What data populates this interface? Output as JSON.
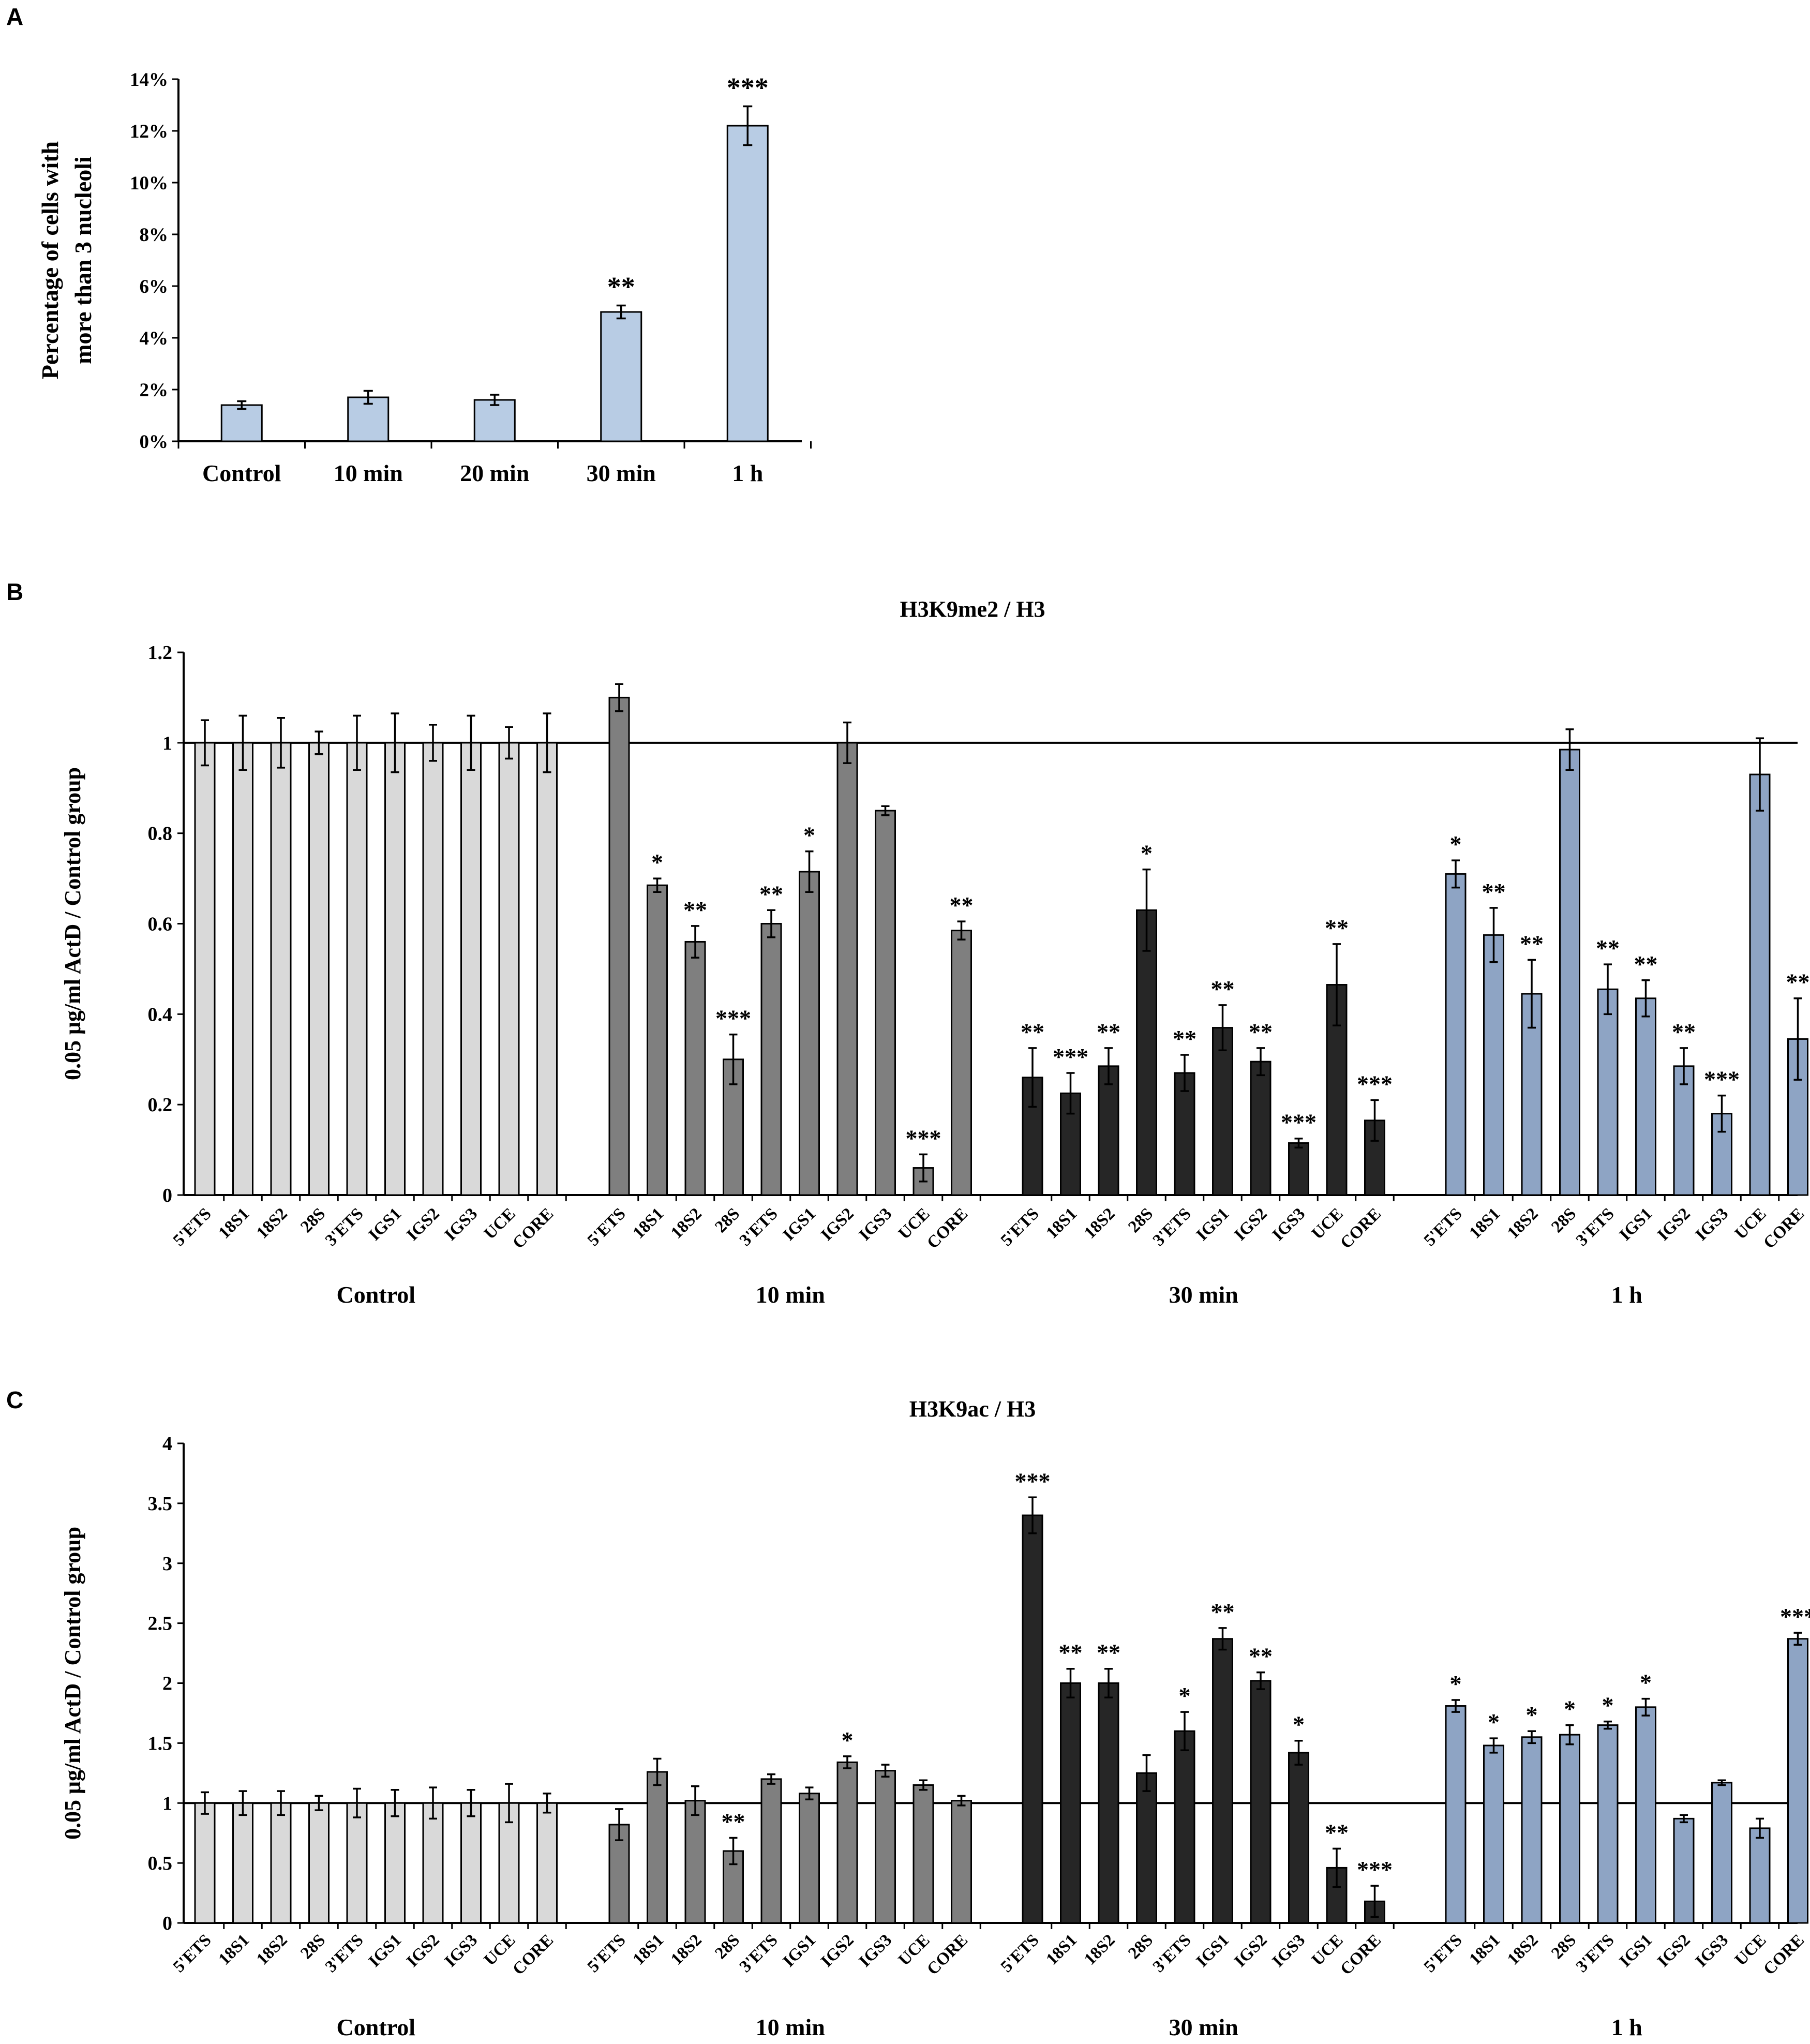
{
  "chart_data": [
    {
      "panel": "A",
      "type": "bar",
      "title": "",
      "ylabel": "Percentage of cells with more than 3 nucleoli",
      "ylabel_lines": [
        "Percentage of cells with",
        "more than 3 nucleoli"
      ],
      "xlabel": "",
      "ylim": [
        0,
        14
      ],
      "yticks": [
        "0%",
        "2%",
        "4%",
        "6%",
        "8%",
        "10%",
        "12%",
        "14%"
      ],
      "categories": [
        "Control",
        "10 min",
        "20 min",
        "30 min",
        "1 h"
      ],
      "values": [
        1.4,
        1.7,
        1.6,
        5.0,
        12.2
      ],
      "errors": [
        0.15,
        0.25,
        0.2,
        0.25,
        0.75
      ],
      "significance": [
        "",
        "",
        "",
        "**",
        "***"
      ],
      "bar_color": "#b8cce4"
    },
    {
      "panel": "B",
      "type": "bar",
      "title": "H3K9me2 / H3",
      "ylabel": "0.05 μg/ml ActD / Control group",
      "ylim": [
        0,
        1.2
      ],
      "yticks": [
        "0",
        "0.2",
        "0.4",
        "0.6",
        "0.8",
        "1",
        "1.2"
      ],
      "reference_line": 1,
      "categories": [
        "5'ETS",
        "18S1",
        "18S2",
        "28S",
        "3'ETS",
        "IGS1",
        "IGS2",
        "IGS3",
        "UCE",
        "CORE"
      ],
      "groups": [
        {
          "name": "Control",
          "color": "#d9d9d9",
          "values": [
            1.0,
            1.0,
            1.0,
            1.0,
            1.0,
            1.0,
            1.0,
            1.0,
            1.0,
            1.0
          ],
          "errors": [
            0.05,
            0.06,
            0.055,
            0.025,
            0.06,
            0.065,
            0.04,
            0.06,
            0.035,
            0.065
          ],
          "significance": [
            "",
            "",
            "",
            "",
            "",
            "",
            "",
            "",
            "",
            ""
          ]
        },
        {
          "name": "10 min",
          "color": "#7f7f7f",
          "values": [
            1.1,
            0.685,
            0.56,
            0.3,
            0.6,
            0.715,
            1.0,
            0.85,
            0.06,
            0.585
          ],
          "errors": [
            0.03,
            0.015,
            0.035,
            0.055,
            0.03,
            0.045,
            0.045,
            0.01,
            0.03,
            0.02
          ],
          "significance": [
            "",
            "*",
            "**",
            "***",
            "**",
            "*",
            "",
            "",
            "***",
            "**"
          ]
        },
        {
          "name": "30 min",
          "color": "#262626",
          "values": [
            0.26,
            0.225,
            0.285,
            0.63,
            0.27,
            0.37,
            0.295,
            0.115,
            0.465,
            0.165
          ],
          "errors": [
            0.065,
            0.045,
            0.04,
            0.09,
            0.04,
            0.05,
            0.03,
            0.01,
            0.09,
            0.045
          ],
          "significance": [
            "**",
            "***",
            "**",
            "*",
            "**",
            "**",
            "**",
            "***",
            "**",
            "***"
          ]
        },
        {
          "name": "1 h",
          "color": "#8ea4c4",
          "values": [
            0.71,
            0.575,
            0.445,
            0.985,
            0.455,
            0.435,
            0.285,
            0.18,
            0.93,
            0.345
          ],
          "errors": [
            0.03,
            0.06,
            0.075,
            0.045,
            0.055,
            0.04,
            0.04,
            0.04,
            0.08,
            0.09
          ],
          "significance": [
            "*",
            "**",
            "**",
            "",
            "**",
            "**",
            "**",
            "***",
            "",
            "**"
          ]
        }
      ]
    },
    {
      "panel": "C",
      "type": "bar",
      "title": "H3K9ac / H3",
      "ylabel": "0.05 μg/ml ActD / Control group",
      "ylim": [
        0,
        4
      ],
      "yticks": [
        "0",
        "0.5",
        "1",
        "1.5",
        "2",
        "2.5",
        "3",
        "3.5",
        "4"
      ],
      "reference_line": 1,
      "categories": [
        "5'ETS",
        "18S1",
        "18S2",
        "28S",
        "3'ETS",
        "IGS1",
        "IGS2",
        "IGS3",
        "UCE",
        "CORE"
      ],
      "groups": [
        {
          "name": "Control",
          "color": "#d9d9d9",
          "values": [
            1.0,
            1.0,
            1.0,
            1.0,
            1.0,
            1.0,
            1.0,
            1.0,
            1.0,
            1.0
          ],
          "errors": [
            0.09,
            0.1,
            0.1,
            0.06,
            0.12,
            0.11,
            0.13,
            0.11,
            0.16,
            0.08
          ],
          "significance": [
            "",
            "",
            "",
            "",
            "",
            "",
            "",
            "",
            "",
            ""
          ]
        },
        {
          "name": "10 min",
          "color": "#7f7f7f",
          "values": [
            0.82,
            1.26,
            1.02,
            0.6,
            1.2,
            1.08,
            1.34,
            1.27,
            1.15,
            1.02
          ],
          "errors": [
            0.13,
            0.11,
            0.12,
            0.11,
            0.04,
            0.05,
            0.05,
            0.05,
            0.04,
            0.04
          ],
          "significance": [
            "",
            "",
            "",
            "**",
            "",
            "",
            "*",
            "",
            "",
            ""
          ]
        },
        {
          "name": "30 min",
          "color": "#262626",
          "values": [
            3.4,
            2.0,
            2.0,
            1.25,
            1.6,
            2.37,
            2.02,
            1.42,
            0.46,
            0.18
          ],
          "errors": [
            0.15,
            0.12,
            0.12,
            0.15,
            0.16,
            0.09,
            0.07,
            0.1,
            0.16,
            0.13
          ],
          "significance": [
            "***",
            "**",
            "**",
            "",
            "*",
            "**",
            "**",
            "*",
            "**",
            "***"
          ]
        },
        {
          "name": "1 h",
          "color": "#8ea4c4",
          "values": [
            1.81,
            1.48,
            1.55,
            1.57,
            1.65,
            1.8,
            0.87,
            1.17,
            0.79,
            2.37
          ],
          "errors": [
            0.05,
            0.06,
            0.05,
            0.08,
            0.03,
            0.07,
            0.03,
            0.02,
            0.08,
            0.05
          ],
          "significance": [
            "*",
            "*",
            "*",
            "*",
            "*",
            "*",
            "",
            "",
            "",
            "***"
          ]
        }
      ]
    }
  ]
}
